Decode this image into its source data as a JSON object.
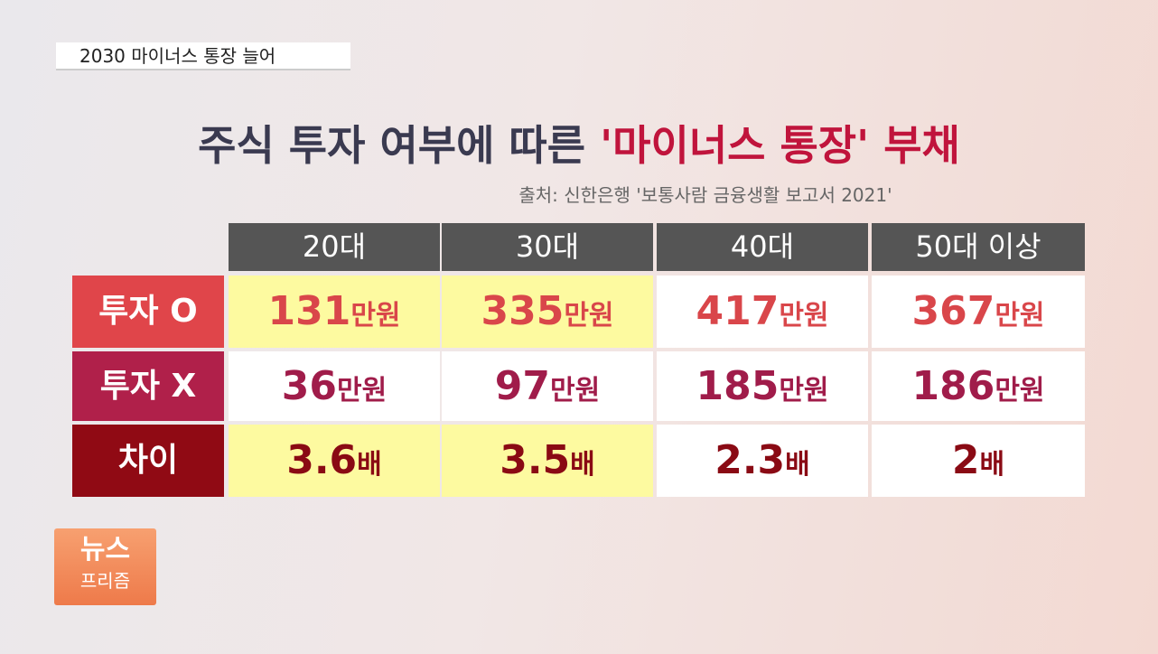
{
  "header": {
    "tag": "2030 마이너스 통장 늘어"
  },
  "title": {
    "part1": "주식 투자 여부에 따른 ",
    "part2": "'마이너스 통장' 부채"
  },
  "source": "출처: 신한은행 '보통사람 금융생활 보고서 2021'",
  "table": {
    "columns": [
      "20대",
      "30대",
      "40대",
      "50대 이상"
    ],
    "rows": [
      {
        "label": "투자 O",
        "cells": [
          {
            "number": 131,
            "unit": "만원"
          },
          {
            "number": 335,
            "unit": "만원"
          },
          {
            "number": 417,
            "unit": "만원"
          },
          {
            "number": 367,
            "unit": "만원"
          }
        ]
      },
      {
        "label": "투자 X",
        "cells": [
          {
            "number": 36,
            "unit": "만원"
          },
          {
            "number": 97,
            "unit": "만원"
          },
          {
            "number": 185,
            "unit": "만원"
          },
          {
            "number": 186,
            "unit": "만원"
          }
        ]
      },
      {
        "label": "차이",
        "cells": [
          {
            "number": 3.6,
            "unit": "배"
          },
          {
            "number": 3.5,
            "unit": "배"
          },
          {
            "number": 2.3,
            "unit": "배"
          },
          {
            "number": 2,
            "unit": "배"
          }
        ]
      }
    ]
  },
  "logo": {
    "line1": "뉴스",
    "line2": "프리즘"
  }
}
